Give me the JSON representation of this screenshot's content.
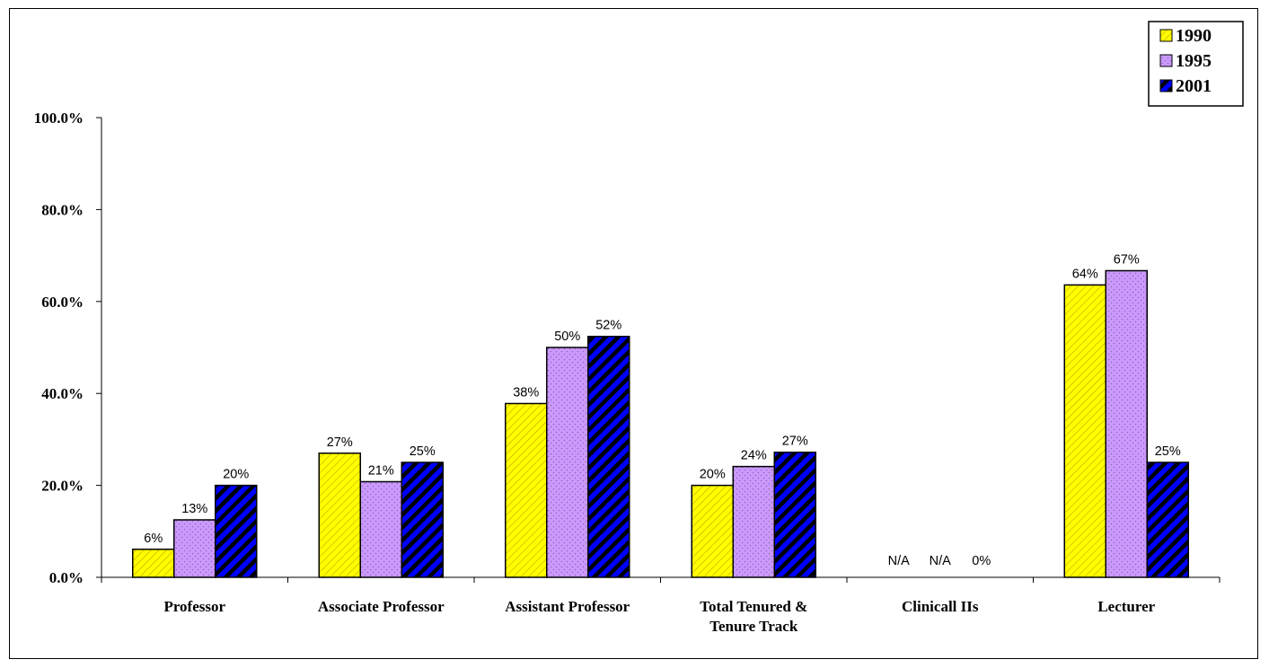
{
  "chart_data": {
    "type": "bar",
    "categories": [
      [
        "Professor"
      ],
      [
        "Associate Professor"
      ],
      [
        "Assistant Professor"
      ],
      [
        "Total Tenured &",
        "Tenure Track"
      ],
      [
        "Clinicall IIs"
      ],
      [
        "Lecturer"
      ]
    ],
    "series": [
      {
        "name": "1990",
        "values": [
          6.1,
          27.0,
          37.8,
          20.0,
          null,
          63.6
        ],
        "labels": [
          "6%",
          "27%",
          "38%",
          "20%",
          "N/A",
          "64%"
        ],
        "color": "#ffff00",
        "pattern": "diag-light"
      },
      {
        "name": "1995",
        "values": [
          12.5,
          20.8,
          50.0,
          24.1,
          null,
          66.7
        ],
        "labels": [
          "13%",
          "21%",
          "50%",
          "24%",
          "N/A",
          "67%"
        ],
        "color": "#cc99ff",
        "pattern": "dots"
      },
      {
        "name": "2001",
        "values": [
          20.0,
          25.0,
          52.4,
          27.2,
          0,
          25.0
        ],
        "labels": [
          "20%",
          "25%",
          "52%",
          "27%",
          "0%",
          "25%"
        ],
        "color": "#0000ff",
        "pattern": "diag-heavy"
      }
    ],
    "y_ticks": [
      "0.0%",
      "20.0%",
      "40.0%",
      "60.0%",
      "80.0%",
      "100.0%"
    ],
    "ylim": [
      0,
      100
    ],
    "title": "",
    "xlabel": "",
    "ylabel": "",
    "legend_position": "top-right",
    "grid": false
  }
}
